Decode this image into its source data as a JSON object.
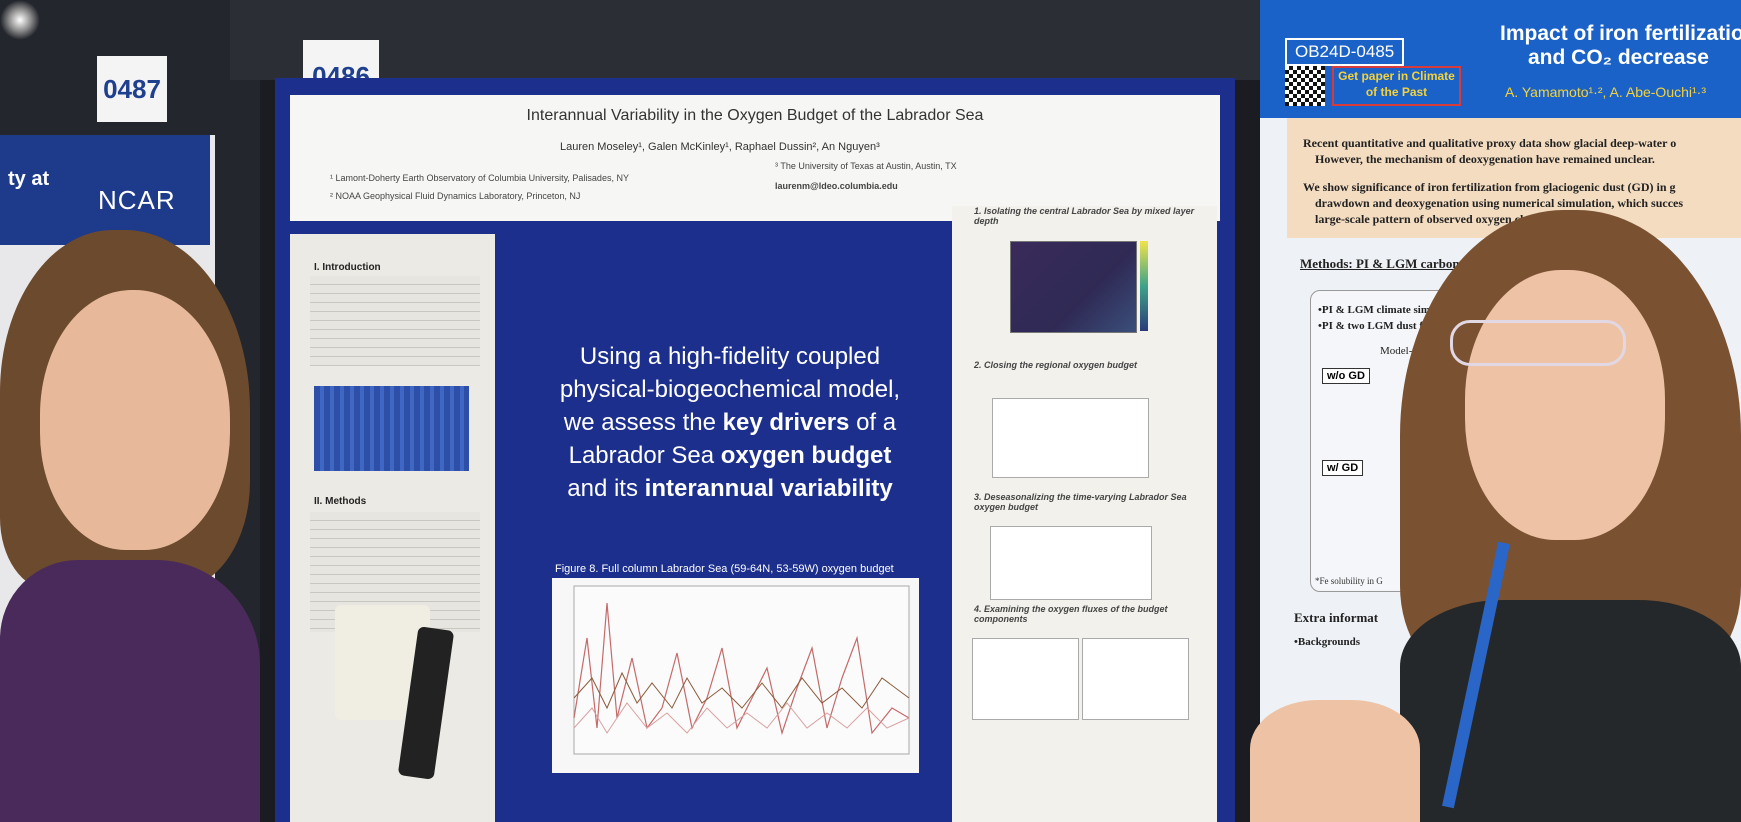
{
  "tags": {
    "left": "0487",
    "main": "0486",
    "right": "OB24D-0485"
  },
  "left_poster": {
    "line1": "ty at",
    "logo": "NCAR"
  },
  "main_poster": {
    "title": "Interannual Variability in the Oxygen Budget of the Labrador Sea",
    "authors": "Lauren Moseley¹, Galen McKinley¹, Raphael Dussin², An Nguyen³",
    "affil1": "¹ Lamont-Doherty Earth Observatory of Columbia University, Palisades, NY",
    "affil2": "² NOAA Geophysical Fluid Dynamics Laboratory, Princeton, NJ",
    "affil3": "³ The University of Texas at Austin, Austin, TX",
    "email": "laurenm@ldeo.columbia.edu",
    "intro_heading": "I. Introduction",
    "methods_heading": "II. Methods",
    "center_line1": "Using a high-fidelity coupled",
    "center_line2": "physical-biogeochemical model,",
    "center_line3a": "we assess the ",
    "center_line3b": "key drivers",
    "center_line3c": " of a",
    "center_line4a": "Labrador Sea ",
    "center_line4b": "oxygen budget",
    "center_line5a": "and its ",
    "center_line5b": "interannual variability",
    "figure_caption": "Figure 8. Full column Labrador Sea (59-64N, 53-59W) oxygen budget",
    "step1": "1. Isolating the central Labrador Sea by mixed layer depth",
    "step2": "2. Closing the regional oxygen budget",
    "step3": "3. Deseasonalizing the time-varying Labrador Sea oxygen budget",
    "step4": "4. Examining the oxygen fluxes of the budget components"
  },
  "right_poster": {
    "title_line1": "Impact of iron fertilizatio",
    "title_line2": "and CO₂ decrease",
    "get_paper": "Get paper in Climate of the Past",
    "authors": "A. Yamamoto¹·², A. Abe-Ouchi¹·³",
    "bullet1": "Recent quantitative and qualitative proxy data show glacial deep-water o",
    "bullet1b": "However, the mechanism of deoxygenation have remained unclear.",
    "bullet2": "We show significance of iron fertilization from glaciogenic dust (GD) in g",
    "bullet2b": "drawdown and deoxygenation using numerical simulation, which succes",
    "bullet2c": "large-scale pattern of observed oxygen chang",
    "methods": "Methods: PI & LGM carbon c",
    "m1": "•PI & LGM climate  simu",
    "m2": "•PI & two LGM dust flux",
    "model_data": "Model-data",
    "wo_gd": "w/o GD",
    "w_gd": "w/ GD",
    "fe_note": "*Fe solubility in G",
    "extra": "Extra informat",
    "backgrounds": "•Backgrounds"
  },
  "colors": {
    "poster_blue": "#1c2f8c",
    "banner_blue": "#1b62c8",
    "peach": "#f3dcc0"
  }
}
